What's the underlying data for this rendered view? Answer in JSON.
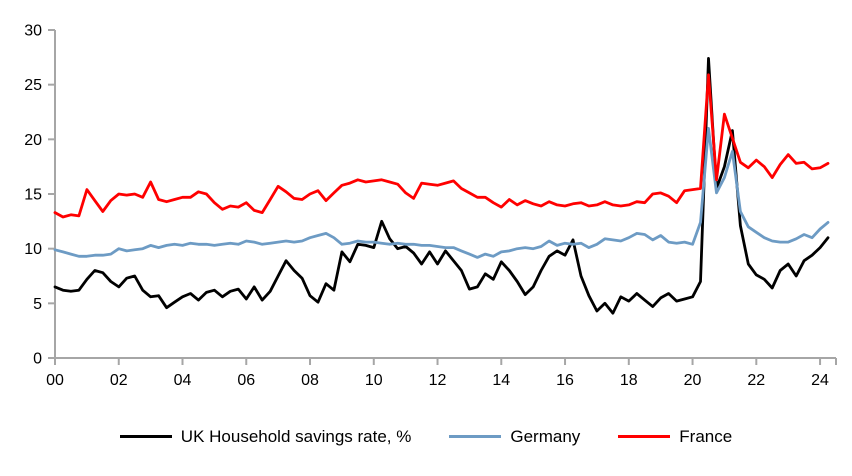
{
  "chart_data": {
    "type": "line",
    "title": "",
    "xlabel": "",
    "ylabel": "",
    "x_start": 2000,
    "x_step_years": 0.25,
    "xlim": [
      2000,
      2024.5
    ],
    "ylim": [
      0,
      30
    ],
    "yticks": [
      0,
      5,
      10,
      15,
      20,
      25,
      30
    ],
    "xtick_years": [
      2000,
      2002,
      2004,
      2006,
      2008,
      2010,
      2012,
      2014,
      2016,
      2018,
      2020,
      2022,
      2024
    ],
    "xtick_labels": [
      "00",
      "02",
      "04",
      "06",
      "08",
      "10",
      "12",
      "14",
      "16",
      "18",
      "20",
      "22",
      "24"
    ],
    "grid": false,
    "legend_position": "bottom",
    "series": [
      {
        "name": "UK Household savings rate, %",
        "color": "#000000",
        "values": [
          6.5,
          6.2,
          6.1,
          6.2,
          7.2,
          8.0,
          7.8,
          7.0,
          6.5,
          7.3,
          7.5,
          6.2,
          5.6,
          5.7,
          4.6,
          5.1,
          5.6,
          5.9,
          5.3,
          6.0,
          6.2,
          5.6,
          6.1,
          6.3,
          5.4,
          6.5,
          5.3,
          6.1,
          7.5,
          8.9,
          8.0,
          7.3,
          5.7,
          5.1,
          6.8,
          6.2,
          9.7,
          8.8,
          10.4,
          10.3,
          10.1,
          12.5,
          10.9,
          10.0,
          10.2,
          9.6,
          8.6,
          9.7,
          8.6,
          9.8,
          8.9,
          8.0,
          6.3,
          6.5,
          7.7,
          7.2,
          8.8,
          8.0,
          7.0,
          5.8,
          6.5,
          8.0,
          9.3,
          9.8,
          9.4,
          10.8,
          7.5,
          5.7,
          4.3,
          5.0,
          4.1,
          5.6,
          5.2,
          5.9,
          5.3,
          4.7,
          5.5,
          5.9,
          5.2,
          5.4,
          5.6,
          7.0,
          27.4,
          15.5,
          17.5,
          20.8,
          12.1,
          8.6,
          7.6,
          7.2,
          6.4,
          8.0,
          8.6,
          7.5,
          8.9,
          9.4,
          10.1,
          11.0
        ]
      },
      {
        "name": "Germany",
        "color": "#6D9BC4",
        "values": [
          9.9,
          9.7,
          9.5,
          9.3,
          9.3,
          9.4,
          9.4,
          9.5,
          10.0,
          9.8,
          9.9,
          10.0,
          10.3,
          10.1,
          10.3,
          10.4,
          10.3,
          10.5,
          10.4,
          10.4,
          10.3,
          10.4,
          10.5,
          10.4,
          10.7,
          10.6,
          10.4,
          10.5,
          10.6,
          10.7,
          10.6,
          10.7,
          11.0,
          11.2,
          11.4,
          11.0,
          10.4,
          10.5,
          10.7,
          10.6,
          10.6,
          10.5,
          10.4,
          10.5,
          10.4,
          10.4,
          10.3,
          10.3,
          10.2,
          10.1,
          10.1,
          9.8,
          9.5,
          9.2,
          9.5,
          9.3,
          9.7,
          9.8,
          10.0,
          10.1,
          10.0,
          10.2,
          10.7,
          10.3,
          10.5,
          10.4,
          10.5,
          10.1,
          10.4,
          10.9,
          10.8,
          10.7,
          11.0,
          11.4,
          11.3,
          10.8,
          11.2,
          10.6,
          10.5,
          10.6,
          10.4,
          12.4,
          21.0,
          15.1,
          16.5,
          18.9,
          13.4,
          12.0,
          11.5,
          11.0,
          10.7,
          10.6,
          10.6,
          10.9,
          11.3,
          11.0,
          11.8,
          12.4
        ]
      },
      {
        "name": "France",
        "color": "#FF0000",
        "values": [
          13.3,
          12.9,
          13.1,
          13.0,
          15.4,
          14.4,
          13.4,
          14.4,
          15.0,
          14.9,
          15.0,
          14.7,
          16.1,
          14.5,
          14.3,
          14.5,
          14.7,
          14.7,
          15.2,
          15.0,
          14.2,
          13.6,
          13.9,
          13.8,
          14.2,
          13.5,
          13.3,
          14.5,
          15.7,
          15.2,
          14.6,
          14.5,
          15.0,
          15.3,
          14.4,
          15.1,
          15.8,
          16.0,
          16.3,
          16.1,
          16.2,
          16.3,
          16.1,
          15.9,
          15.1,
          14.6,
          16.0,
          15.9,
          15.8,
          16.0,
          16.2,
          15.5,
          15.1,
          14.7,
          14.7,
          14.2,
          13.8,
          14.5,
          14.0,
          14.4,
          14.1,
          13.9,
          14.3,
          14.0,
          13.9,
          14.1,
          14.2,
          13.9,
          14.0,
          14.3,
          14.0,
          13.9,
          14.0,
          14.3,
          14.2,
          15.0,
          15.1,
          14.8,
          14.2,
          15.3,
          15.4,
          15.5,
          25.9,
          16.3,
          22.3,
          20.1,
          17.9,
          17.4,
          18.1,
          17.5,
          16.5,
          17.7,
          18.6,
          17.8,
          17.9,
          17.3,
          17.4,
          17.8
        ]
      }
    ]
  },
  "colors": {
    "axis": "#A6A6A6",
    "background": "#FFFFFF",
    "uk_line": "#000000",
    "germany_line": "#6D9BC4",
    "france_line": "#FF0000"
  },
  "legend": {
    "uk": "UK Household savings rate, %",
    "germany": "Germany",
    "france": "France"
  }
}
